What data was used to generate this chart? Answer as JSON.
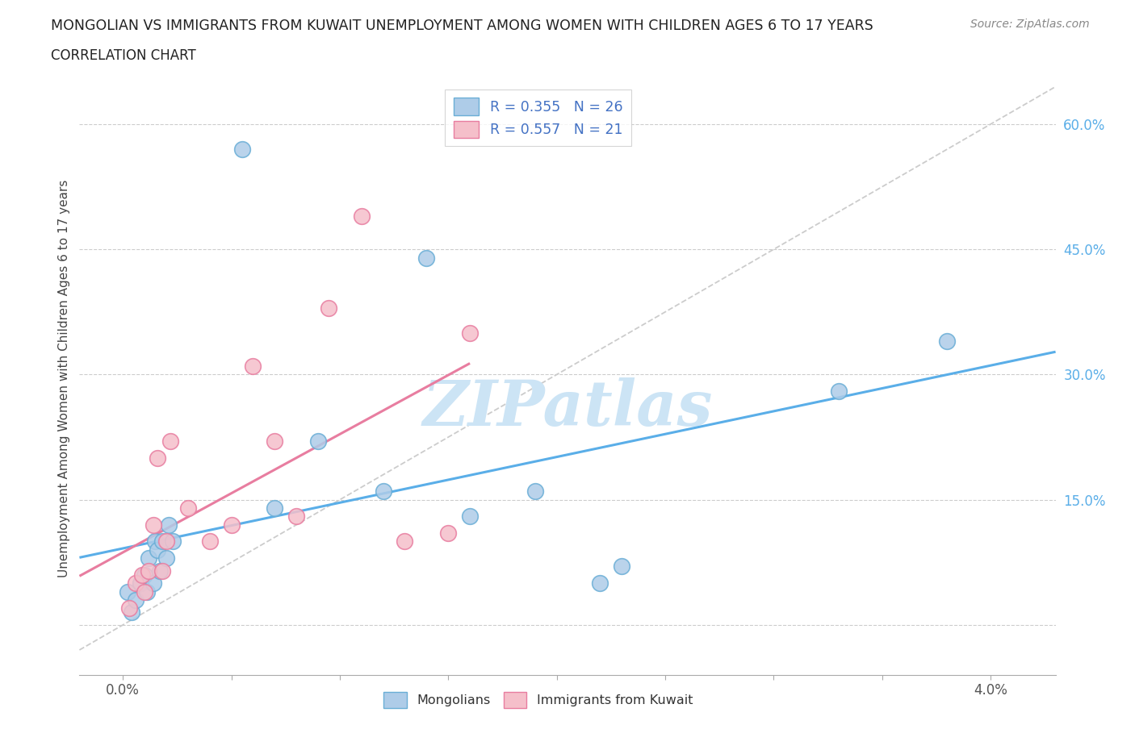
{
  "title": "MONGOLIAN VS IMMIGRANTS FROM KUWAIT UNEMPLOYMENT AMONG WOMEN WITH CHILDREN AGES 6 TO 17 YEARS",
  "subtitle": "CORRELATION CHART",
  "source": "Source: ZipAtlas.com",
  "ylabel": "Unemployment Among Women with Children Ages 6 to 17 years",
  "xlim": [
    -0.002,
    0.043
  ],
  "ylim": [
    -0.06,
    0.65
  ],
  "x_ticks": [
    0.0,
    0.005,
    0.01,
    0.015,
    0.02,
    0.025,
    0.03,
    0.035,
    0.04
  ],
  "x_tick_labels": [
    "0.0%",
    "",
    "",
    "",
    "",
    "",
    "",
    "",
    "4.0%"
  ],
  "y_ticks": [
    0.0,
    0.15,
    0.3,
    0.45,
    0.6
  ],
  "y_tick_labels": [
    "",
    "15.0%",
    "30.0%",
    "45.0%",
    "60.0%"
  ],
  "mongolian_color": "#aecce8",
  "kuwait_color": "#f5bfca",
  "mongolian_edge": "#6aaed6",
  "kuwait_edge": "#e87da0",
  "line_mongolian": "#5aaee8",
  "line_kuwait": "#e87da0",
  "diagonal_color": "#cccccc",
  "watermark_color": "#cce4f5",
  "legend_r_mongolian": "R = 0.355",
  "legend_n_mongolian": "N = 26",
  "legend_r_kuwait": "R = 0.557",
  "legend_n_kuwait": "N = 21",
  "mongolian_x": [
    0.0002,
    0.0004,
    0.0006,
    0.0008,
    0.001,
    0.0011,
    0.0012,
    0.0014,
    0.0015,
    0.0016,
    0.0017,
    0.0018,
    0.002,
    0.0021,
    0.0023,
    0.0055,
    0.007,
    0.009,
    0.012,
    0.014,
    0.016,
    0.019,
    0.022,
    0.023,
    0.033,
    0.038
  ],
  "mongolian_y": [
    0.04,
    0.015,
    0.03,
    0.05,
    0.06,
    0.04,
    0.08,
    0.05,
    0.1,
    0.09,
    0.065,
    0.1,
    0.08,
    0.12,
    0.1,
    0.57,
    0.14,
    0.22,
    0.16,
    0.44,
    0.13,
    0.16,
    0.05,
    0.07,
    0.28,
    0.34
  ],
  "kuwait_x": [
    0.0003,
    0.0006,
    0.0009,
    0.001,
    0.0012,
    0.0014,
    0.0016,
    0.0018,
    0.002,
    0.0022,
    0.003,
    0.004,
    0.005,
    0.006,
    0.007,
    0.008,
    0.0095,
    0.011,
    0.013,
    0.015,
    0.016
  ],
  "kuwait_y": [
    0.02,
    0.05,
    0.06,
    0.04,
    0.065,
    0.12,
    0.2,
    0.065,
    0.1,
    0.22,
    0.14,
    0.1,
    0.12,
    0.31,
    0.22,
    0.13,
    0.38,
    0.49,
    0.1,
    0.11,
    0.35
  ]
}
